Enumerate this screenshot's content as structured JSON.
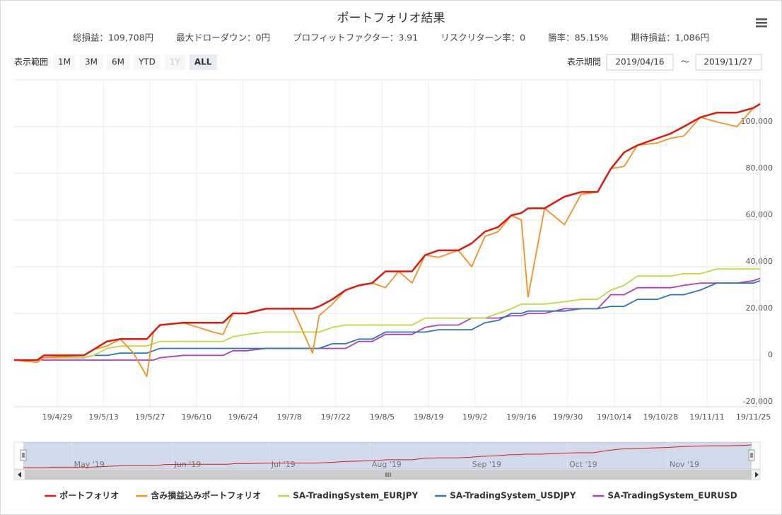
{
  "chart_data": {
    "type": "line",
    "title": "ポートフォリオ結果",
    "summary": [
      "総損益：109,708円",
      "最大ドローダウン：0円",
      "プロフィットファクター：3.91",
      "リスクリターン率：0",
      "勝率：85.15%",
      "期待損益：1,086円"
    ],
    "range_selector": {
      "label": "表示範囲",
      "buttons": [
        "1M",
        "3M",
        "6M",
        "YTD",
        "1Y",
        "ALL"
      ],
      "selected_index": 5,
      "disabled_index": 4
    },
    "date_range": {
      "label": "表示期間",
      "from": "2019/04/16",
      "separator": "～",
      "to": "2019/11/27"
    },
    "x": [
      "2019-04-16",
      "2019-04-23",
      "2019-04-25",
      "2019-05-07",
      "2019-05-10",
      "2019-05-14",
      "2019-05-18",
      "2019-05-22",
      "2019-05-26",
      "2019-05-28",
      "2019-05-30",
      "2019-06-06",
      "2019-06-15",
      "2019-06-18",
      "2019-06-21",
      "2019-06-25",
      "2019-07-01",
      "2019-07-09",
      "2019-07-15",
      "2019-07-17",
      "2019-07-21",
      "2019-07-25",
      "2019-07-29",
      "2019-08-02",
      "2019-08-06",
      "2019-08-10",
      "2019-08-14",
      "2019-08-18",
      "2019-08-22",
      "2019-08-28",
      "2019-09-01",
      "2019-09-05",
      "2019-09-09",
      "2019-09-13",
      "2019-09-16",
      "2019-09-18",
      "2019-09-23",
      "2019-09-29",
      "2019-10-04",
      "2019-10-09",
      "2019-10-13",
      "2019-10-17",
      "2019-10-21",
      "2019-10-27",
      "2019-10-31",
      "2019-11-04",
      "2019-11-09",
      "2019-11-14",
      "2019-11-20",
      "2019-11-25",
      "2019-11-27"
    ],
    "series": [
      {
        "name": "ポートフォリオ",
        "color": "#e3170d",
        "values": [
          0,
          0,
          2000,
          2000,
          4500,
          8000,
          9000,
          9000,
          9000,
          12000,
          15000,
          16000,
          16000,
          16000,
          20000,
          20000,
          22000,
          22000,
          22000,
          23000,
          26000,
          30000,
          32000,
          33000,
          38000,
          38000,
          38000,
          45000,
          47000,
          47000,
          50000,
          55000,
          57000,
          62000,
          63000,
          65000,
          65000,
          70000,
          72000,
          72000,
          82000,
          89000,
          92000,
          95000,
          97000,
          100000,
          104000,
          106000,
          106000,
          108000,
          109708
        ]
      },
      {
        "name": "含み損益込みポートフォリオ",
        "color": "#f7901e",
        "values": [
          0,
          -1000,
          1000,
          2000,
          4500,
          6000,
          9000,
          3000,
          -7000,
          12000,
          15000,
          16000,
          12000,
          11000,
          20000,
          20000,
          22000,
          22000,
          3000,
          19000,
          24000,
          30000,
          32000,
          33000,
          31000,
          38000,
          33000,
          45000,
          44000,
          47000,
          40000,
          53000,
          55000,
          62000,
          60000,
          27000,
          65000,
          58000,
          71000,
          72000,
          82000,
          83000,
          92000,
          93000,
          95000,
          96000,
          104000,
          102000,
          100000,
          108000,
          109708
        ]
      },
      {
        "name": "SA-TradingSystem_EURJPY",
        "color": "#c3d83d",
        "values": [
          0,
          0,
          1000,
          1000,
          2000,
          5000,
          6000,
          6000,
          6000,
          7000,
          8000,
          8000,
          8000,
          8000,
          10000,
          11000,
          12000,
          12000,
          12000,
          12000,
          14000,
          15000,
          15000,
          15000,
          15000,
          15000,
          15000,
          18000,
          18000,
          18000,
          18000,
          18000,
          20000,
          22000,
          24000,
          24000,
          24000,
          25000,
          26000,
          26000,
          30000,
          32000,
          36000,
          36000,
          36000,
          37000,
          37000,
          39000,
          39000,
          39000,
          39000
        ]
      },
      {
        "name": "SA-TradingSystem_USDJPY",
        "color": "#2b78b8",
        "values": [
          0,
          0,
          1000,
          1000,
          2000,
          2000,
          3000,
          3000,
          3000,
          4000,
          5000,
          5000,
          5000,
          5000,
          5000,
          5000,
          5000,
          5000,
          5000,
          5000,
          7000,
          7000,
          9000,
          9000,
          12000,
          12000,
          12000,
          12000,
          13000,
          13000,
          13000,
          16000,
          17000,
          20000,
          20000,
          21000,
          21000,
          21000,
          22000,
          22000,
          23000,
          23000,
          26000,
          26000,
          28000,
          28000,
          30000,
          33000,
          33000,
          33000,
          34000
        ]
      },
      {
        "name": "SA-TradingSystem_EURUSD",
        "color": "#b43dbd",
        "values": [
          0,
          0,
          0,
          0,
          0,
          0,
          0,
          0,
          0,
          0,
          1000,
          2000,
          2000,
          2000,
          4000,
          4000,
          5000,
          5000,
          5000,
          5000,
          5000,
          5000,
          8000,
          8000,
          11000,
          11000,
          11000,
          14000,
          15000,
          15000,
          18000,
          18000,
          18000,
          19000,
          19000,
          20000,
          20000,
          22000,
          22000,
          22000,
          28000,
          28000,
          31000,
          31000,
          31000,
          32000,
          33000,
          33000,
          33000,
          34000,
          35000
        ]
      }
    ],
    "xlim": [
      "2019-04-16",
      "2019-11-27"
    ],
    "xticks": [
      {
        "value": "2019-04-29",
        "label": "19/4/29"
      },
      {
        "value": "2019-05-13",
        "label": "19/5/13"
      },
      {
        "value": "2019-05-27",
        "label": "19/5/27"
      },
      {
        "value": "2019-06-10",
        "label": "19/6/10"
      },
      {
        "value": "2019-06-24",
        "label": "19/6/24"
      },
      {
        "value": "2019-07-08",
        "label": "19/7/8"
      },
      {
        "value": "2019-07-22",
        "label": "19/7/22"
      },
      {
        "value": "2019-08-05",
        "label": "19/8/5"
      },
      {
        "value": "2019-08-19",
        "label": "19/8/19"
      },
      {
        "value": "2019-09-02",
        "label": "19/9/2"
      },
      {
        "value": "2019-09-16",
        "label": "19/9/16"
      },
      {
        "value": "2019-09-30",
        "label": "19/9/30"
      },
      {
        "value": "2019-10-14",
        "label": "19/10/14"
      },
      {
        "value": "2019-10-28",
        "label": "19/10/28"
      },
      {
        "value": "2019-11-11",
        "label": "19/11/11"
      },
      {
        "value": "2019-11-25",
        "label": "19/11/25"
      }
    ],
    "ylim": [
      -20000,
      120000
    ],
    "yticks": [
      {
        "value": -20000,
        "label": "-20,000"
      },
      0,
      {
        "value": 20000,
        "label": "20,000"
      },
      {
        "value": 40000,
        "label": "40,000"
      },
      {
        "value": 60000,
        "label": "60,000"
      },
      {
        "value": 80000,
        "label": "80,000"
      },
      {
        "value": 100000,
        "label": "100,000"
      }
    ],
    "grid": true,
    "navigator": {
      "series_index": 0,
      "xticks": [
        {
          "value": "2019-05-01",
          "label": "May '19"
        },
        {
          "value": "2019-06-01",
          "label": "Jun '19"
        },
        {
          "value": "2019-07-01",
          "label": "Jul '19"
        },
        {
          "value": "2019-08-01",
          "label": "Aug '19"
        },
        {
          "value": "2019-09-01",
          "label": "Sep '19"
        },
        {
          "value": "2019-10-01",
          "label": "Oct '19"
        },
        {
          "value": "2019-11-01",
          "label": "Nov '19"
        }
      ]
    },
    "legend": "bottom"
  }
}
